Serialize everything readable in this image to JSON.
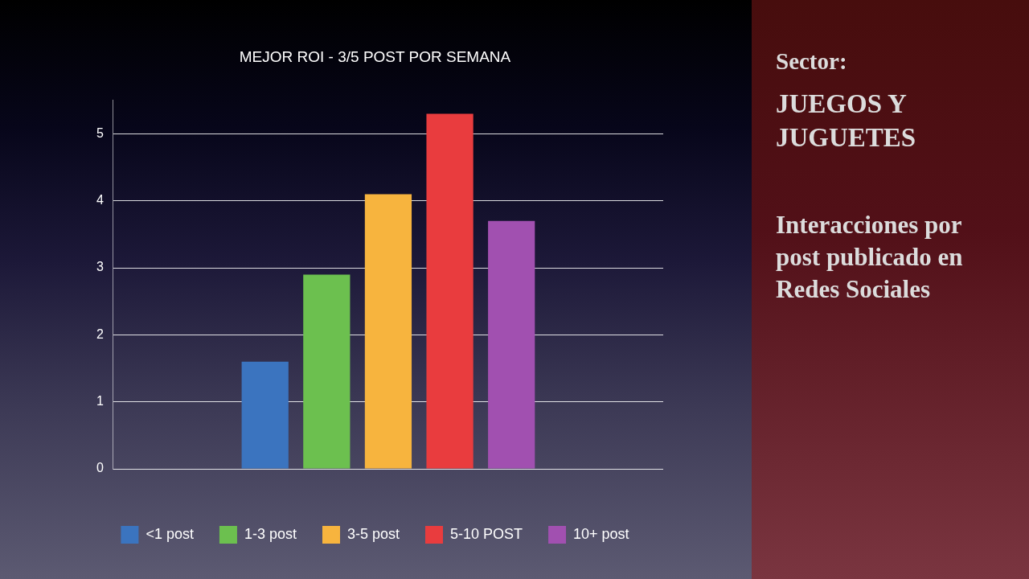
{
  "chart_data": {
    "type": "bar",
    "title": "MEJOR ROI - 3/5 POST POR SEMANA",
    "categories": [
      null
    ],
    "series": [
      {
        "name": "<1 post",
        "color": "#3b74bf",
        "values": [
          1.6
        ]
      },
      {
        "name": "1-3 post",
        "color": "#6cc04f",
        "values": [
          2.9
        ]
      },
      {
        "name": "3-5 post",
        "color": "#f7b43e",
        "values": [
          4.1
        ]
      },
      {
        "name": "5-10 POST",
        "color": "#e93c3e",
        "values": [
          5.3
        ]
      },
      {
        "name": "10+ post",
        "color": "#a150b0",
        "values": [
          3.7
        ]
      }
    ],
    "ylim": [
      0,
      5.5
    ],
    "yticks": [
      0,
      1,
      2,
      3,
      4,
      5
    ],
    "grid": "y",
    "legend": "bottom",
    "tick_labels": "y",
    "annotations": [
      "Sector:",
      "JUEGOS Y JUGUETES",
      "Interacciones por post publicado en Redes Sociales"
    ]
  }
}
